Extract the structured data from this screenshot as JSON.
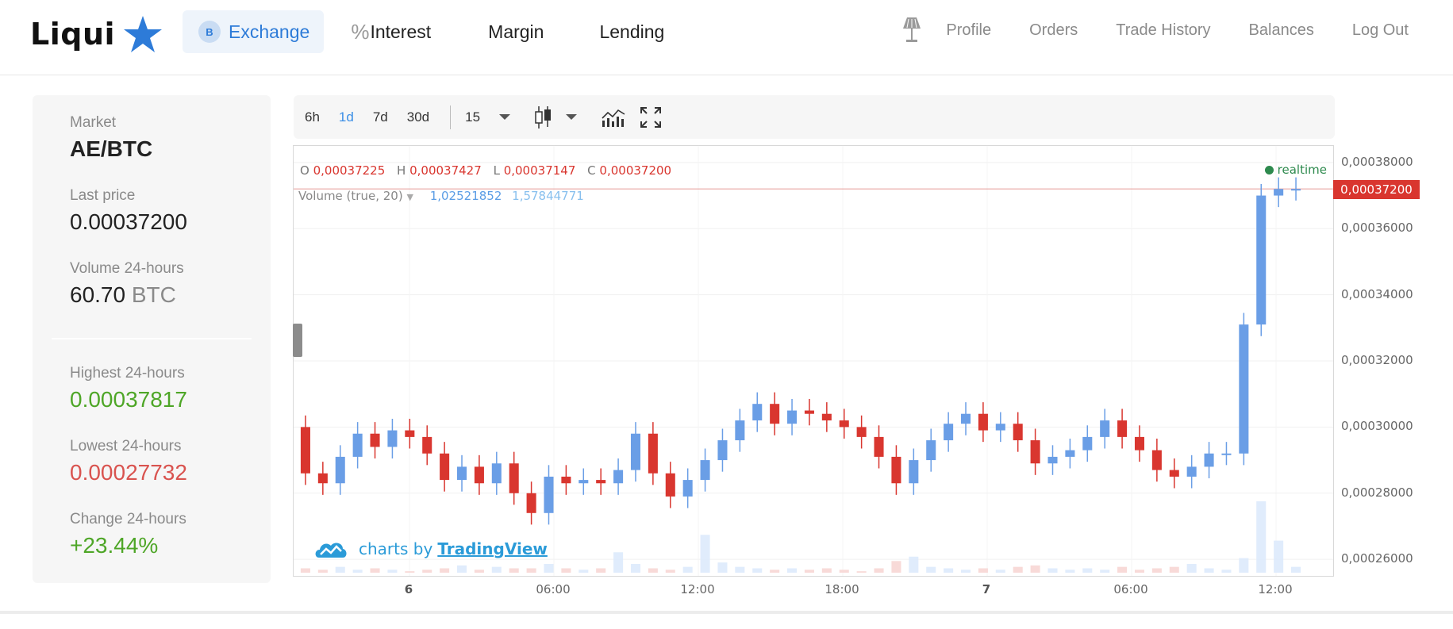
{
  "brand": {
    "name": "Liqui",
    "star_color": "#2d7bd8"
  },
  "nav": {
    "exchange_badge": "B",
    "exchange": "Exchange",
    "interest_icon": "%",
    "interest": "Interest",
    "margin": "Margin",
    "lending": "Lending"
  },
  "right_nav": {
    "lamp_icon": "lamp-icon",
    "profile": "Profile",
    "orders": "Orders",
    "trade_history": "Trade History",
    "balances": "Balances",
    "logout": "Log Out"
  },
  "market": {
    "market_label": "Market",
    "pair": "AE/BTC",
    "last_price_label": "Last price",
    "last_price": "0.00037200",
    "volume_label": "Volume 24-hours",
    "volume_value": "60.70",
    "volume_unit": "BTC",
    "high_label": "Highest 24-hours",
    "high": "0.00037817",
    "low_label": "Lowest 24-hours",
    "low": "0.00027732",
    "change_label": "Change 24-hours",
    "change": "+23.44%"
  },
  "toolbar": {
    "ranges": [
      "6h",
      "1d",
      "7d",
      "30d"
    ],
    "active_range": "1d",
    "interval": "15"
  },
  "chart_legend": {
    "o_label": "O",
    "o": "0,00037225",
    "h_label": "H",
    "h": "0,00037427",
    "l_label": "L",
    "l": "0,00037147",
    "c_label": "C",
    "c": "0,00037200",
    "volume_label": "Volume (true, 20)",
    "volume_1": "1,02521852",
    "volume_2": "1,57844771",
    "realtime": "realtime",
    "current_price_tag": "0,00037200",
    "brand_text": "charts by",
    "brand_link": "TradingView"
  },
  "chart_data": {
    "type": "candlestick",
    "up_color": "#6a9ee6",
    "down_color": "#d9362f",
    "y_ticks": [
      "0,00038000",
      "0,00036000",
      "0,00034000",
      "0,00032000",
      "0,00030000",
      "0,00028000",
      "0,00026000"
    ],
    "x_ticks": [
      {
        "label": "6",
        "bold": true
      },
      {
        "label": "06:00",
        "bold": false
      },
      {
        "label": "12:00",
        "bold": false
      },
      {
        "label": "18:00",
        "bold": false
      },
      {
        "label": "7",
        "bold": true
      },
      {
        "label": "06:00",
        "bold": false
      },
      {
        "label": "12:00",
        "bold": false
      }
    ],
    "ylim": [
      0.000255,
      0.000385
    ],
    "current_price": 0.000372,
    "candles_start": [
      0.0003,
      0.000286,
      0.000283,
      0.000291,
      0.000298,
      0.000294,
      0.000299,
      0.000297,
      0.000292,
      0.000284,
      0.000288,
      0.000283,
      0.000289,
      0.00028,
      0.000274,
      0.000285,
      0.000283,
      0.000284,
      0.000283,
      0.000287,
      0.000298,
      0.000286,
      0.000279,
      0.000284,
      0.00029,
      0.000296,
      0.000302,
      0.000307,
      0.000301,
      0.000305,
      0.000304,
      0.000302,
      0.0003,
      0.000297,
      0.000291,
      0.000283,
      0.00029,
      0.000296,
      0.000301,
      0.000304,
      0.000299,
      0.000301,
      0.000296,
      0.000289,
      0.000291,
      0.000293,
      0.000297,
      0.000302,
      0.000297,
      0.000293,
      0.000287,
      0.000285,
      0.000288,
      0.000292,
      0.000292,
      0.000331,
      0.00037,
      0.000372
    ],
    "candles_end": [
      0.000286,
      0.000283,
      0.000291,
      0.000298,
      0.000294,
      0.000299,
      0.000297,
      0.000292,
      0.000284,
      0.000288,
      0.000283,
      0.000289,
      0.00028,
      0.000274,
      0.000285,
      0.000283,
      0.000284,
      0.000283,
      0.000287,
      0.000298,
      0.000286,
      0.000279,
      0.000284,
      0.00029,
      0.000296,
      0.000302,
      0.000307,
      0.000301,
      0.000305,
      0.000304,
      0.000302,
      0.0003,
      0.000297,
      0.000291,
      0.000283,
      0.00029,
      0.000296,
      0.000301,
      0.000304,
      0.000299,
      0.000301,
      0.000296,
      0.000289,
      0.000291,
      0.000293,
      0.000297,
      0.000302,
      0.000297,
      0.000293,
      0.000287,
      0.000285,
      0.000288,
      0.000292,
      0.000292,
      0.000331,
      0.00037,
      0.000372,
      0.000372
    ],
    "volumes": [
      0.3,
      0.2,
      0.4,
      0.2,
      0.3,
      0.2,
      0.1,
      0.2,
      0.3,
      0.5,
      0.2,
      0.4,
      0.3,
      0.3,
      0.6,
      0.3,
      0.2,
      0.3,
      1.4,
      0.6,
      0.3,
      0.2,
      0.4,
      2.6,
      0.7,
      0.4,
      0.3,
      0.2,
      0.3,
      0.2,
      0.3,
      0.2,
      0.1,
      0.3,
      0.8,
      1.1,
      0.4,
      0.3,
      0.2,
      0.3,
      0.2,
      0.4,
      0.5,
      0.3,
      0.2,
      0.3,
      0.2,
      0.4,
      0.2,
      0.3,
      0.4,
      0.6,
      0.3,
      0.2,
      1.0,
      4.9,
      2.2,
      0.4
    ]
  }
}
